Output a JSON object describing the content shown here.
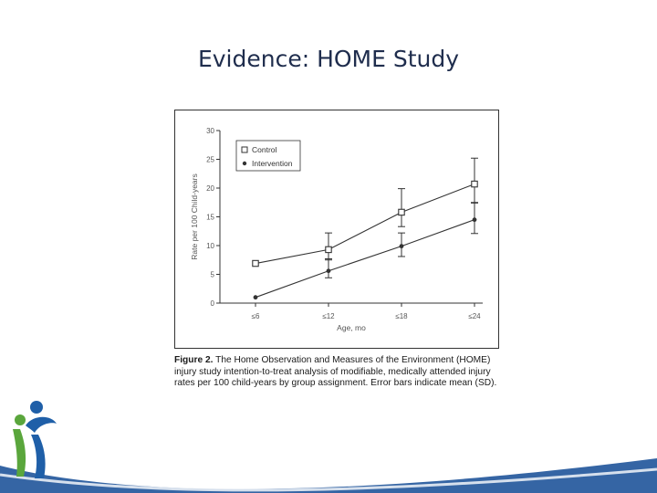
{
  "slide": {
    "title": "Evidence: HOME Study"
  },
  "figure": {
    "caption_label": "Figure 2.",
    "caption_text": " The Home Observation and Measures of the Environment (HOME) injury study intention-to-treat analysis of modifiable, medically attended injury rates per 100 child-years by group assignment. Error bars indicate mean (SD)."
  },
  "chart_data": {
    "type": "line",
    "xlabel": "Age, mo",
    "ylabel": "Rate per 100 Child-years",
    "categories": [
      "≤6",
      "≤12",
      "≤18",
      "≤24"
    ],
    "ylim": [
      0,
      30
    ],
    "yticks": [
      0,
      5,
      10,
      15,
      20,
      25,
      30
    ],
    "legend_position": "top-left",
    "grid": false,
    "series": [
      {
        "name": "Control",
        "marker": "open-square",
        "values": [
          6.9,
          9.3,
          15.8,
          20.7
        ],
        "error_low": [
          null,
          7.5,
          13.3,
          17.5
        ],
        "error_high": [
          null,
          12.2,
          19.9,
          25.2
        ]
      },
      {
        "name": "Intervention",
        "marker": "filled-circle",
        "values": [
          1.0,
          5.6,
          9.9,
          14.5
        ],
        "error_low": [
          null,
          4.4,
          8.1,
          12.1
        ],
        "error_high": [
          null,
          7.7,
          12.2,
          17.4
        ]
      }
    ]
  },
  "colors": {
    "title": "#1f2d4d",
    "chart_line": "#333333",
    "axis_text": "#555555",
    "logo_blue": "#1f5fa8",
    "logo_green": "#5aa63c",
    "swoosh_blue": "#2a5d9f"
  },
  "icons": {
    "logo": "family-figures-logo"
  }
}
